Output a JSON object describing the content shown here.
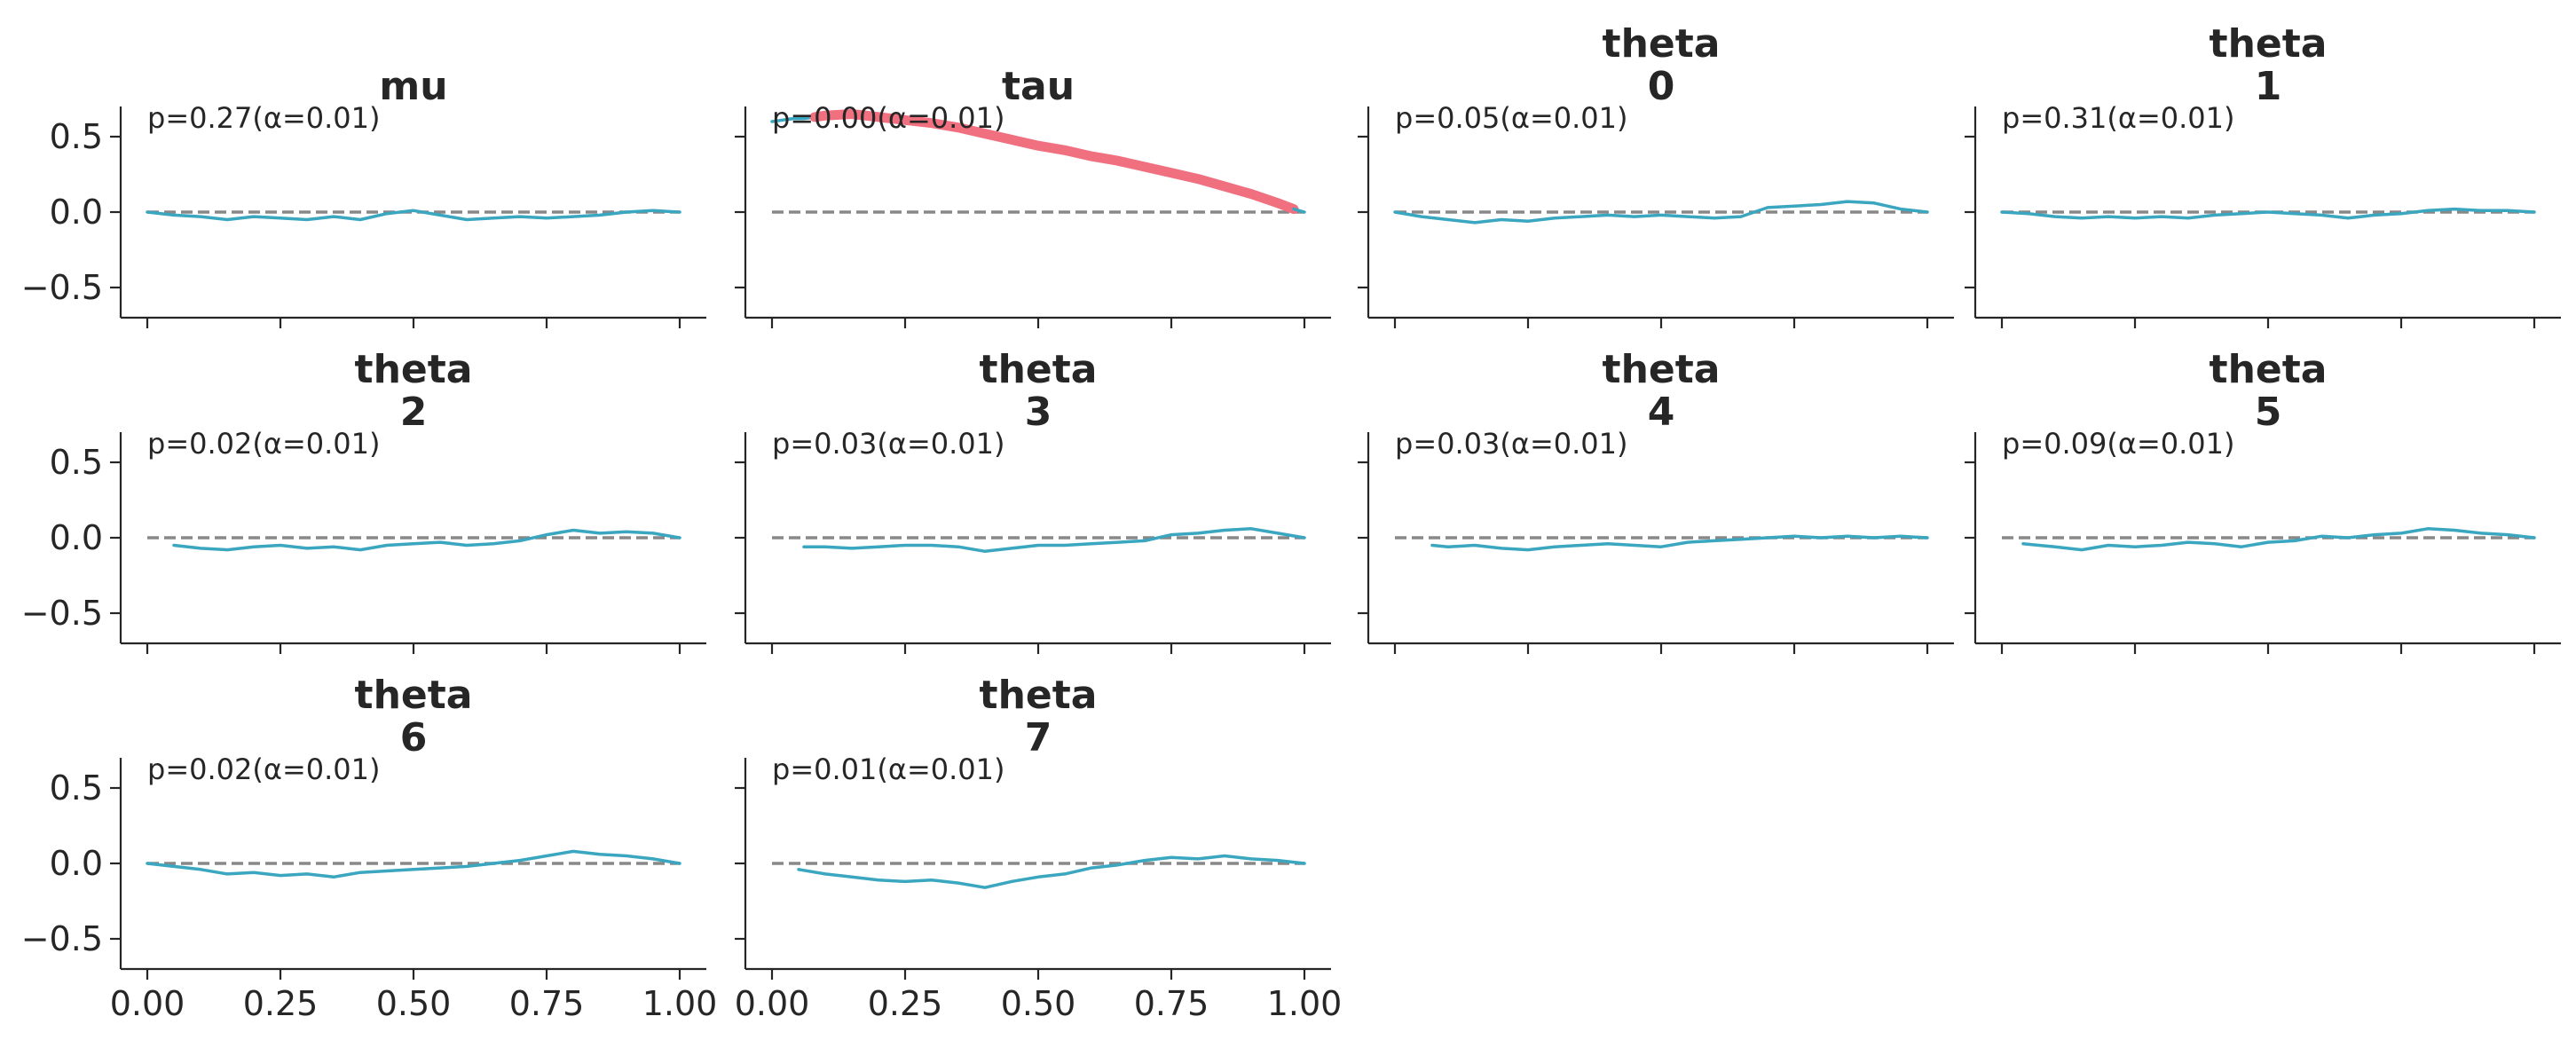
{
  "chart_data": {
    "type": "line",
    "grid": false,
    "layout": {
      "rows": 3,
      "cols": 4
    },
    "xlim": [
      -0.05,
      1.05
    ],
    "ylim": [
      -0.7,
      0.7
    ],
    "xticks": [
      0.0,
      0.25,
      0.5,
      0.75,
      1.0
    ],
    "xtick_labels": [
      "0.00",
      "0.25",
      "0.50",
      "0.75",
      "1.00"
    ],
    "yticks": [
      0.5,
      0.0,
      -0.5
    ],
    "ytick_labels": [
      "0.5",
      "0.0",
      "−0.5"
    ],
    "reference_line": {
      "y": 0.0,
      "style": "dashed",
      "color": "#888888"
    },
    "colors": {
      "ok": "#3aa6c0",
      "exceed": "#f07080",
      "axis": "#262626"
    },
    "panels": [
      {
        "title": [
          "mu"
        ],
        "annotation": "p=0.27(α=0.01)",
        "segments": [
          {
            "status": "ok",
            "x": [
              0.0,
              0.05,
              0.1,
              0.15,
              0.2,
              0.25,
              0.3,
              0.35,
              0.4,
              0.45,
              0.5,
              0.55,
              0.6,
              0.65,
              0.7,
              0.75,
              0.8,
              0.85,
              0.9,
              0.95,
              1.0
            ],
            "y": [
              0.0,
              -0.02,
              -0.03,
              -0.05,
              -0.03,
              -0.04,
              -0.05,
              -0.03,
              -0.05,
              -0.01,
              0.01,
              -0.02,
              -0.05,
              -0.04,
              -0.03,
              -0.04,
              -0.03,
              -0.02,
              0.0,
              0.01,
              0.0
            ]
          }
        ]
      },
      {
        "title": [
          "tau"
        ],
        "annotation": "p=0.00(α=0.01)",
        "segments": [
          {
            "status": "ok",
            "x": [
              0.0,
              0.02,
              0.04,
              0.06,
              0.08
            ],
            "y": [
              0.6,
              0.61,
              0.62,
              0.62,
              0.63
            ]
          },
          {
            "status": "exceed",
            "x": [
              0.08,
              0.1,
              0.15,
              0.2,
              0.25,
              0.3,
              0.35,
              0.4,
              0.45,
              0.5,
              0.55,
              0.6,
              0.65,
              0.7,
              0.75,
              0.8,
              0.85,
              0.9,
              0.95,
              0.98
            ],
            "y": [
              0.63,
              0.64,
              0.65,
              0.63,
              0.61,
              0.59,
              0.56,
              0.52,
              0.48,
              0.44,
              0.41,
              0.37,
              0.34,
              0.3,
              0.26,
              0.22,
              0.17,
              0.12,
              0.06,
              0.02
            ]
          },
          {
            "status": "ok",
            "x": [
              0.98,
              1.0
            ],
            "y": [
              0.02,
              0.0
            ]
          }
        ]
      },
      {
        "title": [
          "theta",
          "0"
        ],
        "annotation": "p=0.05(α=0.01)",
        "segments": [
          {
            "status": "ok",
            "x": [
              0.0,
              0.05,
              0.1,
              0.15,
              0.2,
              0.25,
              0.3,
              0.35,
              0.4,
              0.45,
              0.5,
              0.55,
              0.6,
              0.65,
              0.7,
              0.75,
              0.8,
              0.85,
              0.9,
              0.95,
              1.0
            ],
            "y": [
              0.0,
              -0.03,
              -0.05,
              -0.07,
              -0.05,
              -0.06,
              -0.04,
              -0.03,
              -0.02,
              -0.03,
              -0.02,
              -0.03,
              -0.04,
              -0.03,
              0.03,
              0.04,
              0.05,
              0.07,
              0.06,
              0.02,
              0.0
            ]
          }
        ]
      },
      {
        "title": [
          "theta",
          "1"
        ],
        "annotation": "p=0.31(α=0.01)",
        "segments": [
          {
            "status": "ok",
            "x": [
              0.0,
              0.05,
              0.1,
              0.15,
              0.2,
              0.25,
              0.3,
              0.35,
              0.4,
              0.45,
              0.5,
              0.55,
              0.6,
              0.65,
              0.7,
              0.75,
              0.8,
              0.85,
              0.9,
              0.95,
              1.0
            ],
            "y": [
              0.0,
              -0.01,
              -0.03,
              -0.04,
              -0.03,
              -0.04,
              -0.03,
              -0.04,
              -0.02,
              -0.01,
              0.0,
              -0.01,
              -0.02,
              -0.04,
              -0.02,
              -0.01,
              0.01,
              0.02,
              0.01,
              0.01,
              0.0
            ]
          }
        ]
      },
      {
        "title": [
          "theta",
          "2"
        ],
        "annotation": "p=0.02(α=0.01)",
        "segments": [
          {
            "status": "ok",
            "x": [
              0.05,
              0.1,
              0.15,
              0.2,
              0.25,
              0.3,
              0.35,
              0.4,
              0.45,
              0.5,
              0.55,
              0.6,
              0.65,
              0.7,
              0.75,
              0.8,
              0.85,
              0.9,
              0.95,
              1.0
            ],
            "y": [
              -0.05,
              -0.07,
              -0.08,
              -0.06,
              -0.05,
              -0.07,
              -0.06,
              -0.08,
              -0.05,
              -0.04,
              -0.03,
              -0.05,
              -0.04,
              -0.02,
              0.02,
              0.05,
              0.03,
              0.04,
              0.03,
              0.0
            ]
          }
        ]
      },
      {
        "title": [
          "theta",
          "3"
        ],
        "annotation": "p=0.03(α=0.01)",
        "segments": [
          {
            "status": "ok",
            "x": [
              0.06,
              0.1,
              0.15,
              0.2,
              0.25,
              0.3,
              0.35,
              0.4,
              0.45,
              0.5,
              0.55,
              0.6,
              0.65,
              0.7,
              0.75,
              0.8,
              0.85,
              0.9,
              0.95,
              1.0
            ],
            "y": [
              -0.06,
              -0.06,
              -0.07,
              -0.06,
              -0.05,
              -0.05,
              -0.06,
              -0.09,
              -0.07,
              -0.05,
              -0.05,
              -0.04,
              -0.03,
              -0.02,
              0.02,
              0.03,
              0.05,
              0.06,
              0.03,
              0.0
            ]
          }
        ]
      },
      {
        "title": [
          "theta",
          "4"
        ],
        "annotation": "p=0.03(α=0.01)",
        "segments": [
          {
            "status": "ok",
            "x": [
              0.07,
              0.1,
              0.15,
              0.2,
              0.25,
              0.3,
              0.35,
              0.4,
              0.45,
              0.5,
              0.55,
              0.6,
              0.65,
              0.7,
              0.75,
              0.8,
              0.85,
              0.9,
              0.95,
              1.0
            ],
            "y": [
              -0.05,
              -0.06,
              -0.05,
              -0.07,
              -0.08,
              -0.06,
              -0.05,
              -0.04,
              -0.05,
              -0.06,
              -0.03,
              -0.02,
              -0.01,
              0.0,
              0.01,
              0.0,
              0.01,
              0.0,
              0.01,
              0.0
            ]
          }
        ]
      },
      {
        "title": [
          "theta",
          "5"
        ],
        "annotation": "p=0.09(α=0.01)",
        "segments": [
          {
            "status": "ok",
            "x": [
              0.04,
              0.1,
              0.15,
              0.2,
              0.25,
              0.3,
              0.35,
              0.4,
              0.45,
              0.5,
              0.55,
              0.6,
              0.65,
              0.7,
              0.75,
              0.8,
              0.85,
              0.9,
              0.95,
              1.0
            ],
            "y": [
              -0.04,
              -0.06,
              -0.08,
              -0.05,
              -0.06,
              -0.05,
              -0.03,
              -0.04,
              -0.06,
              -0.03,
              -0.02,
              0.01,
              0.0,
              0.02,
              0.03,
              0.06,
              0.05,
              0.03,
              0.02,
              0.0
            ]
          }
        ]
      },
      {
        "title": [
          "theta",
          "6"
        ],
        "annotation": "p=0.02(α=0.01)",
        "segments": [
          {
            "status": "ok",
            "x": [
              0.0,
              0.05,
              0.1,
              0.15,
              0.2,
              0.25,
              0.3,
              0.35,
              0.4,
              0.45,
              0.5,
              0.55,
              0.6,
              0.65,
              0.7,
              0.75,
              0.8,
              0.85,
              0.9,
              0.95,
              1.0
            ],
            "y": [
              0.0,
              -0.02,
              -0.04,
              -0.07,
              -0.06,
              -0.08,
              -0.07,
              -0.09,
              -0.06,
              -0.05,
              -0.04,
              -0.03,
              -0.02,
              0.0,
              0.02,
              0.05,
              0.08,
              0.06,
              0.05,
              0.03,
              0.0
            ]
          }
        ]
      },
      {
        "title": [
          "theta",
          "7"
        ],
        "annotation": "p=0.01(α=0.01)",
        "segments": [
          {
            "status": "ok",
            "x": [
              0.05,
              0.1,
              0.15,
              0.2,
              0.25,
              0.3,
              0.35,
              0.4,
              0.45,
              0.5,
              0.55,
              0.6,
              0.65,
              0.7,
              0.75,
              0.8,
              0.85,
              0.9,
              0.95,
              1.0
            ],
            "y": [
              -0.04,
              -0.07,
              -0.09,
              -0.11,
              -0.12,
              -0.11,
              -0.13,
              -0.16,
              -0.12,
              -0.09,
              -0.07,
              -0.03,
              -0.01,
              0.02,
              0.04,
              0.03,
              0.05,
              0.03,
              0.02,
              0.0
            ]
          }
        ]
      }
    ]
  }
}
